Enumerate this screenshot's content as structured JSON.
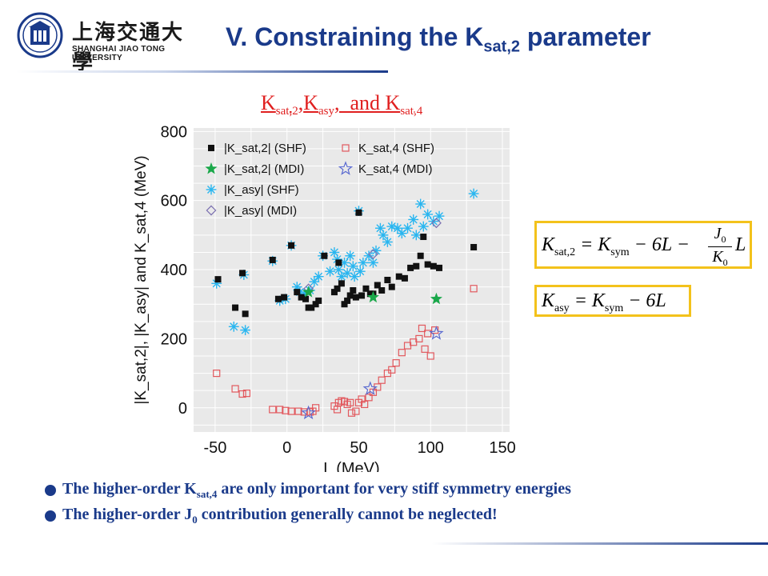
{
  "logo": {
    "cn": "上海交通大學",
    "en": "SHANGHAI JIAO TONG UNIVERSITY"
  },
  "title": {
    "main": "V. Constraining the K",
    "sub": "sat,2",
    "end": " parameter"
  },
  "chart_heading": {
    "k1": "K",
    "s1": "sat,2",
    "comma1": ",",
    "k2": "K",
    "s2": "asy",
    "and": ",  and ",
    "k3": "K",
    "s3": "sat,4"
  },
  "formulas": {
    "f1_lhs": "K",
    "f1_lhs_sub": "sat,2",
    "f1_eq": " = K",
    "f1_sym_sub": "sym",
    "f1_rest": " − 6L −",
    "f1_num": "J",
    "f1_num_sub": "0",
    "f1_den": "K",
    "f1_den_sub": "0",
    "f1_tail": "L",
    "f2_lhs": "K",
    "f2_lhs_sub": "asy",
    "f2_eq": " = K",
    "f2_sym_sub": "sym",
    "f2_rest": " − 6L"
  },
  "bullets": [
    {
      "pre": "The higher-order K",
      "sub": "sat,4",
      "post": " are only important for very stiff symmetry energies"
    },
    {
      "pre": "The higher-order J",
      "sub": "0",
      "post": " contribution generally cannot be neglected!"
    }
  ],
  "colors": {
    "black": "#111111",
    "green": "#1aa84a",
    "cyan": "#29b6f0",
    "purple": "#7a6fb0",
    "red": "#e2595e",
    "blue": "#5a6ad0",
    "title": "#1a3a8a",
    "heading": "#e02020"
  },
  "chart_data": {
    "type": "scatter",
    "xlabel": "L (MeV)",
    "ylabel": "|K_sat,2|, |K_asy| and K_sat,4 (MeV)",
    "xlim": [
      -65,
      155
    ],
    "ylim": [
      -70,
      810
    ],
    "xticks": [
      -50,
      0,
      50,
      100,
      150
    ],
    "yticks": [
      0,
      200,
      400,
      600,
      800
    ],
    "grid": true,
    "legend_position": "top-left",
    "series": [
      {
        "name": "|K_sat,2| (SHF)",
        "marker": "square",
        "color": "#111111",
        "points": [
          [
            -48,
            372
          ],
          [
            -36,
            290
          ],
          [
            -31,
            390
          ],
          [
            -29,
            272
          ],
          [
            -10,
            428
          ],
          [
            -6,
            315
          ],
          [
            -2,
            320
          ],
          [
            3,
            470
          ],
          [
            7,
            335
          ],
          [
            10,
            320
          ],
          [
            13,
            315
          ],
          [
            15,
            290
          ],
          [
            17,
            290
          ],
          [
            20,
            300
          ],
          [
            22,
            310
          ],
          [
            26,
            440
          ],
          [
            33,
            335
          ],
          [
            35,
            345
          ],
          [
            36,
            420
          ],
          [
            38,
            360
          ],
          [
            40,
            300
          ],
          [
            42,
            310
          ],
          [
            44,
            325
          ],
          [
            46,
            340
          ],
          [
            48,
            320
          ],
          [
            50,
            565
          ],
          [
            52,
            325
          ],
          [
            55,
            345
          ],
          [
            58,
            330
          ],
          [
            60,
            330
          ],
          [
            63,
            355
          ],
          [
            66,
            340
          ],
          [
            70,
            370
          ],
          [
            73,
            350
          ],
          [
            78,
            380
          ],
          [
            82,
            375
          ],
          [
            86,
            405
          ],
          [
            90,
            410
          ],
          [
            93,
            440
          ],
          [
            95,
            495
          ],
          [
            98,
            415
          ],
          [
            102,
            410
          ],
          [
            106,
            405
          ],
          [
            130,
            465
          ]
        ]
      },
      {
        "name": "|K_sat,2| (MDI)",
        "marker": "star",
        "color": "#1aa84a",
        "points": [
          [
            15,
            335
          ],
          [
            60,
            320
          ],
          [
            104,
            315
          ]
        ]
      },
      {
        "name": "|K_asy| (SHF)",
        "marker": "asterisk",
        "color": "#29b6f0",
        "points": [
          [
            -49,
            360
          ],
          [
            -37,
            235
          ],
          [
            -30,
            385
          ],
          [
            -29,
            225
          ],
          [
            -10,
            425
          ],
          [
            -5,
            310
          ],
          [
            -1,
            315
          ],
          [
            3,
            470
          ],
          [
            7,
            350
          ],
          [
            9,
            335
          ],
          [
            12,
            330
          ],
          [
            16,
            340
          ],
          [
            19,
            365
          ],
          [
            22,
            380
          ],
          [
            25,
            440
          ],
          [
            30,
            395
          ],
          [
            33,
            450
          ],
          [
            35,
            430
          ],
          [
            36,
            400
          ],
          [
            38,
            380
          ],
          [
            40,
            420
          ],
          [
            42,
            390
          ],
          [
            44,
            440
          ],
          [
            46,
            410
          ],
          [
            47,
            380
          ],
          [
            50,
            570
          ],
          [
            51,
            395
          ],
          [
            53,
            420
          ],
          [
            57,
            440
          ],
          [
            60,
            420
          ],
          [
            62,
            455
          ],
          [
            65,
            520
          ],
          [
            67,
            500
          ],
          [
            70,
            480
          ],
          [
            73,
            525
          ],
          [
            77,
            520
          ],
          [
            80,
            505
          ],
          [
            84,
            520
          ],
          [
            88,
            545
          ],
          [
            90,
            500
          ],
          [
            93,
            590
          ],
          [
            95,
            525
          ],
          [
            98,
            560
          ],
          [
            102,
            540
          ],
          [
            106,
            555
          ],
          [
            130,
            620
          ]
        ]
      },
      {
        "name": "|K_asy| (MDI)",
        "marker": "diamond",
        "color": "#7a6fb0",
        "points": [
          [
            15,
            345
          ],
          [
            60,
            445
          ],
          [
            104,
            535
          ]
        ]
      },
      {
        "name": "K_sat,4 (SHF)",
        "marker": "open-square",
        "color": "#e2595e",
        "points": [
          [
            -49,
            100
          ],
          [
            -36,
            55
          ],
          [
            -31,
            40
          ],
          [
            -28,
            42
          ],
          [
            -10,
            -5
          ],
          [
            -5,
            -5
          ],
          [
            -1,
            -8
          ],
          [
            3,
            -10
          ],
          [
            8,
            -10
          ],
          [
            12,
            -12
          ],
          [
            16,
            -12
          ],
          [
            18,
            -10
          ],
          [
            20,
            0
          ],
          [
            33,
            5
          ],
          [
            35,
            -5
          ],
          [
            36,
            15
          ],
          [
            38,
            20
          ],
          [
            40,
            18
          ],
          [
            42,
            10
          ],
          [
            44,
            15
          ],
          [
            45,
            -15
          ],
          [
            48,
            -10
          ],
          [
            50,
            15
          ],
          [
            52,
            25
          ],
          [
            54,
            10
          ],
          [
            57,
            30
          ],
          [
            60,
            45
          ],
          [
            63,
            60
          ],
          [
            66,
            80
          ],
          [
            70,
            100
          ],
          [
            73,
            110
          ],
          [
            76,
            130
          ],
          [
            80,
            160
          ],
          [
            84,
            180
          ],
          [
            88,
            190
          ],
          [
            92,
            200
          ],
          [
            94,
            230
          ],
          [
            96,
            170
          ],
          [
            98,
            215
          ],
          [
            100,
            150
          ],
          [
            103,
            225
          ],
          [
            130,
            345
          ]
        ]
      },
      {
        "name": "K_sat,4 (MDI)",
        "marker": "open-star",
        "color": "#5a6ad0",
        "points": [
          [
            15,
            -15
          ],
          [
            58,
            55
          ],
          [
            104,
            215
          ]
        ]
      }
    ]
  }
}
